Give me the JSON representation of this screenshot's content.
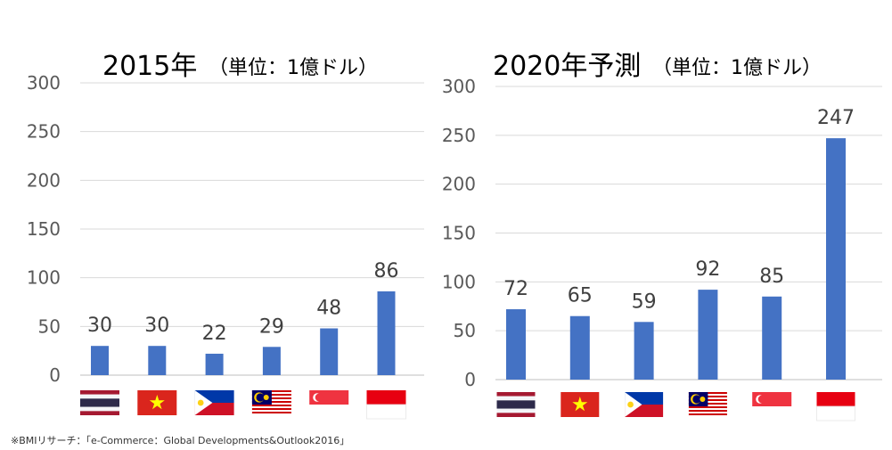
{
  "chart_data": [
    {
      "type": "bar",
      "title": "2015年",
      "unit_note": "（単位：1億ドル）",
      "categories": [
        "thailand-flag",
        "vietnam-flag",
        "philippines-flag",
        "malaysia-flag",
        "singapore-flag",
        "indonesia-flag"
      ],
      "values": [
        30,
        30,
        22,
        29,
        48,
        86
      ],
      "ylim": [
        0,
        300
      ],
      "yticks": [
        "0",
        "50",
        "100",
        "150",
        "200",
        "250",
        "300"
      ],
      "bar_color": "#4472C4",
      "grid": true,
      "xlabel": "",
      "ylabel": ""
    },
    {
      "type": "bar",
      "title": "2020年予測",
      "unit_note": "（単位：1億ドル）",
      "categories": [
        "thailand-flag",
        "vietnam-flag",
        "philippines-flag",
        "malaysia-flag",
        "singapore-flag",
        "indonesia-flag"
      ],
      "values": [
        72,
        65,
        59,
        92,
        85,
        247
      ],
      "ylim": [
        0,
        300
      ],
      "yticks": [
        "0",
        "50",
        "100",
        "150",
        "200",
        "250",
        "300"
      ],
      "bar_color": "#4472C4",
      "grid": true,
      "xlabel": "",
      "ylabel": ""
    }
  ],
  "source_note": "※BMIリサーチ：「e-Commerce：Global Developments&Outlook2016」"
}
